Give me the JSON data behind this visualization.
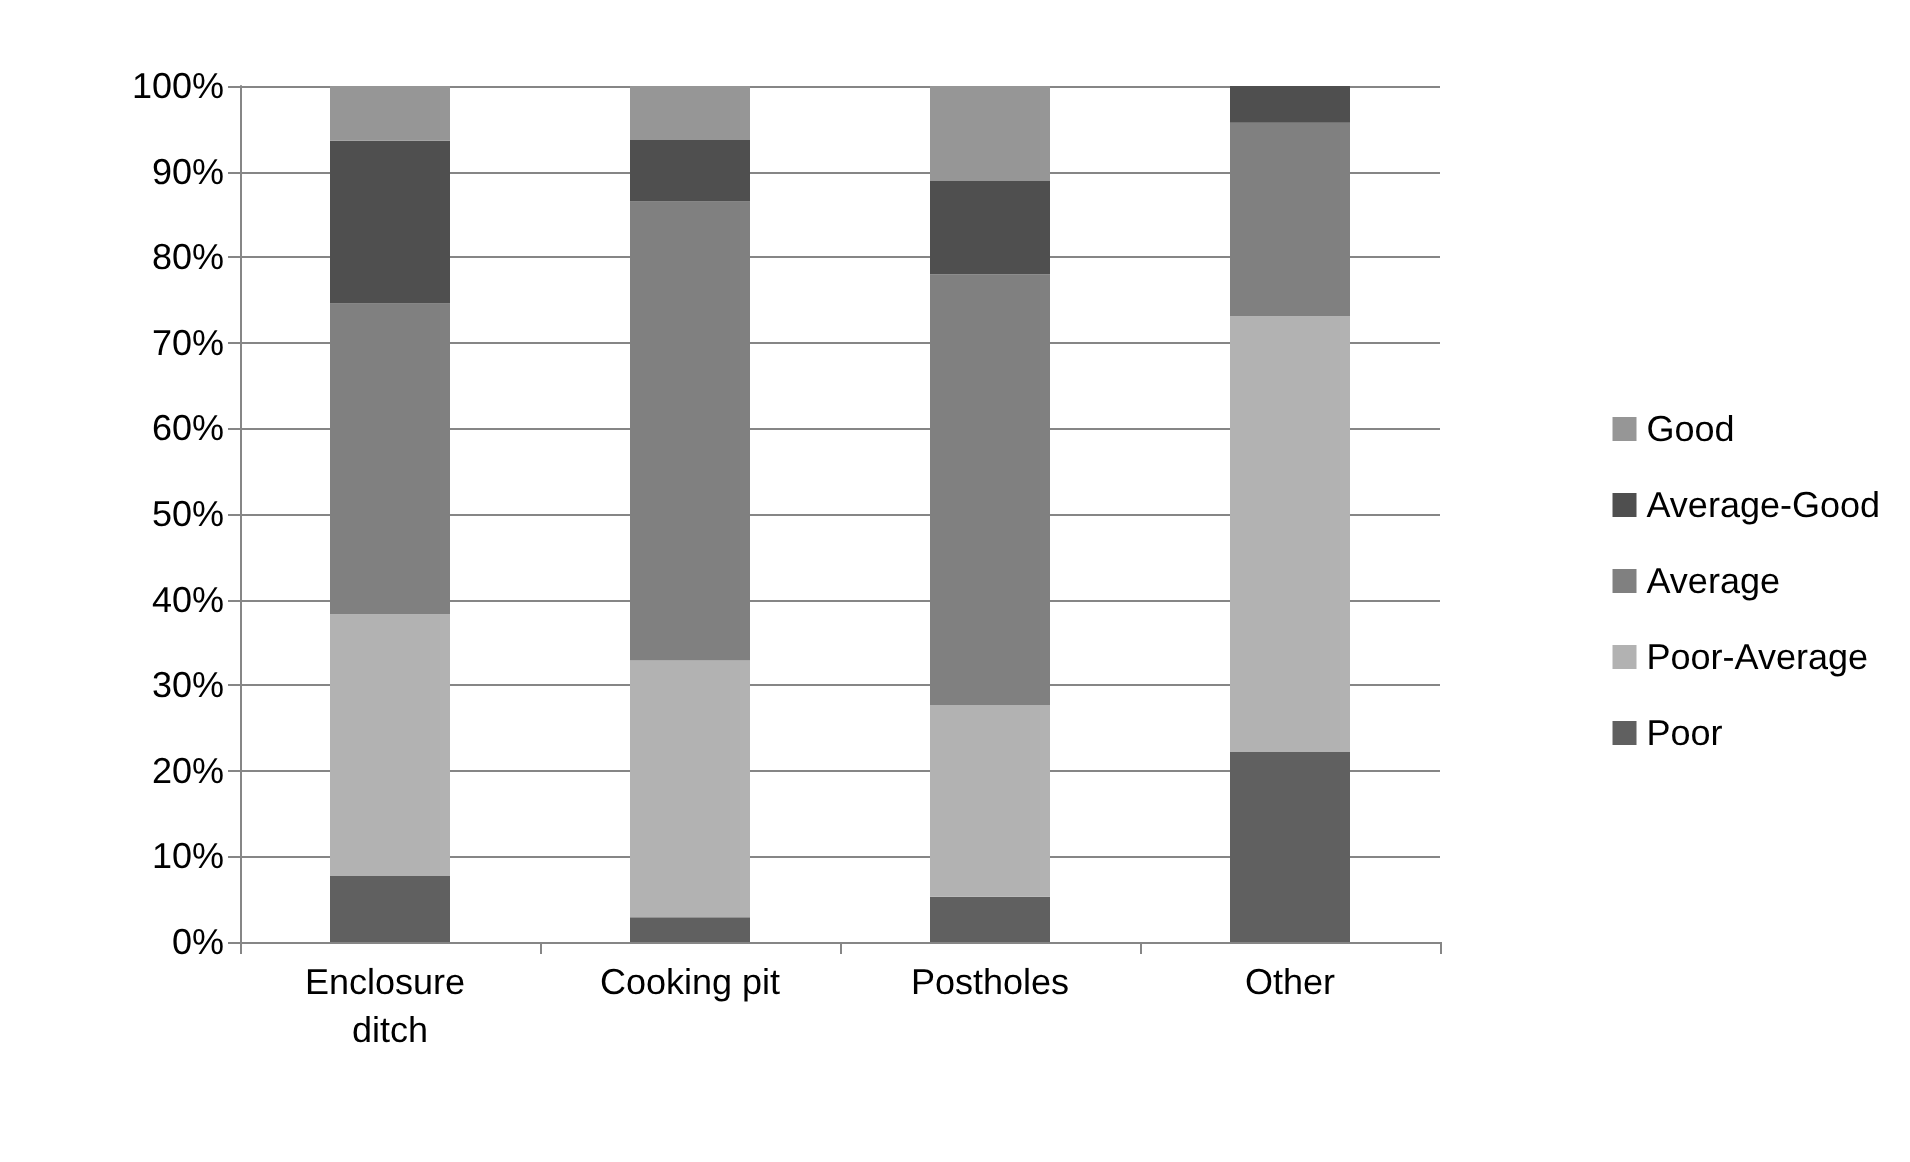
{
  "chart_data": {
    "type": "bar",
    "stacked": true,
    "categories": [
      "Enclosure ditch",
      "Cooking pit",
      "Postholes",
      "Other"
    ],
    "series": [
      {
        "name": "Poor",
        "color": "#606060",
        "values": [
          7.7,
          2.9,
          5.3,
          22.2
        ]
      },
      {
        "name": "Poor-Average",
        "color": "#b2b2b2",
        "values": [
          30.6,
          30.0,
          22.4,
          50.9
        ]
      },
      {
        "name": "Average",
        "color": "#808080",
        "values": [
          36.3,
          53.6,
          50.3,
          22.6
        ]
      },
      {
        "name": "Average-Good",
        "color": "#4f4f4f",
        "values": [
          19.0,
          7.2,
          10.9,
          4.3
        ]
      },
      {
        "name": "Good",
        "color": "#969696",
        "values": [
          6.4,
          6.3,
          11.1,
          0
        ]
      }
    ],
    "ylim": [
      0,
      100
    ],
    "yticks": [
      {
        "value": 0,
        "label": "0%"
      },
      {
        "value": 10,
        "label": "10%"
      },
      {
        "value": 20,
        "label": "20%"
      },
      {
        "value": 30,
        "label": "30%"
      },
      {
        "value": 40,
        "label": "40%"
      },
      {
        "value": 50,
        "label": "50%"
      },
      {
        "value": 60,
        "label": "60%"
      },
      {
        "value": 70,
        "label": "70%"
      },
      {
        "value": 80,
        "label": "80%"
      },
      {
        "value": 90,
        "label": "90%"
      },
      {
        "value": 100,
        "label": "100%"
      }
    ],
    "grid": "y",
    "legend": "right"
  }
}
